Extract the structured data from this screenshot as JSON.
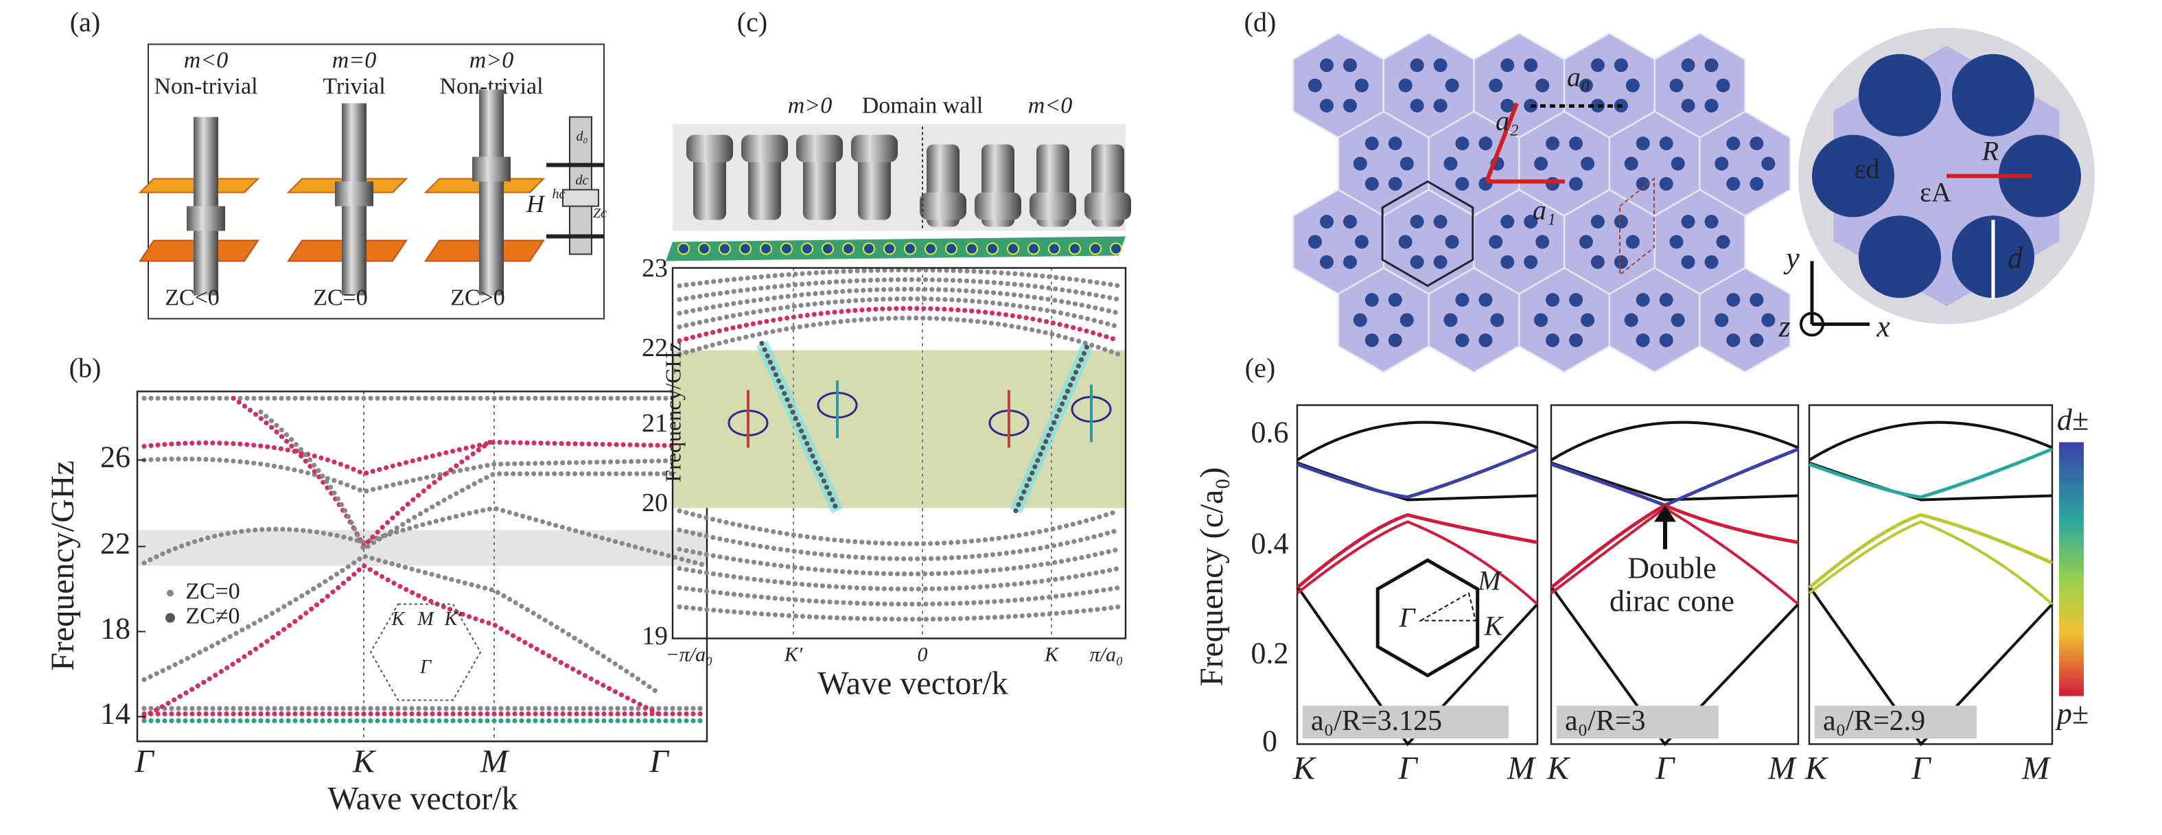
{
  "panels": {
    "a": {
      "label": "(a)",
      "columns": [
        {
          "mass": "m<0",
          "phase": "Non-trivial",
          "zc": "ZC<0"
        },
        {
          "mass": "m=0",
          "phase": "Trivial",
          "zc": "ZC=0"
        },
        {
          "mass": "m>0",
          "phase": "Non-trivial",
          "zc": "ZC>0"
        }
      ],
      "schematic": [
        "d₀",
        "hc",
        "dc",
        "Zc",
        "H"
      ]
    },
    "b": {
      "label": "(b)",
      "y_label": "Frequency/GHz",
      "x_label": "Wave vector/k",
      "y_ticks": [
        "14",
        "18",
        "22",
        "26"
      ],
      "x_ticks": [
        "Γ",
        "K",
        "M",
        "Γ"
      ],
      "legend": [
        "ZC=0",
        "ZC≠0"
      ],
      "inset": [
        "K",
        "M",
        "K′",
        "Γ"
      ]
    },
    "c": {
      "label": "(c)",
      "strip": [
        "m>0",
        "Domain wall",
        "m<0"
      ],
      "y_label": "Frequency/GHz",
      "x_label": "Wave vector/k",
      "y_ticks": [
        "19",
        "20",
        "21",
        "22",
        "23"
      ],
      "x_ticks": [
        "−π/a₀",
        "K′",
        "0",
        "K",
        "π/a₀"
      ]
    },
    "d": {
      "label": "(d)",
      "lattice": [
        "a₀",
        "a₂",
        "a₁"
      ],
      "axes": [
        "y",
        "z",
        "x"
      ],
      "cell": [
        "εd",
        "εA",
        "R",
        "d"
      ]
    },
    "e": {
      "label": "(e)",
      "y_label": "Frequency (c/a₀)",
      "y_ticks": [
        "0",
        "0.2",
        "0.4",
        "0.6"
      ],
      "subplots": [
        {
          "caption": "a₀/R=3.125",
          "x_ticks": [
            "K",
            "Γ",
            "M"
          ]
        },
        {
          "caption": "a₀/R=3",
          "x_ticks": [
            "K",
            "Γ",
            "M"
          ]
        },
        {
          "caption": "a₀/R=2.9",
          "x_ticks": [
            "K",
            "Γ",
            "M"
          ]
        }
      ],
      "inset": [
        "M",
        "Γ",
        "K"
      ],
      "annotation": [
        "Double",
        "dirac cone"
      ],
      "colorbar": [
        "d±",
        "p±"
      ]
    }
  }
}
